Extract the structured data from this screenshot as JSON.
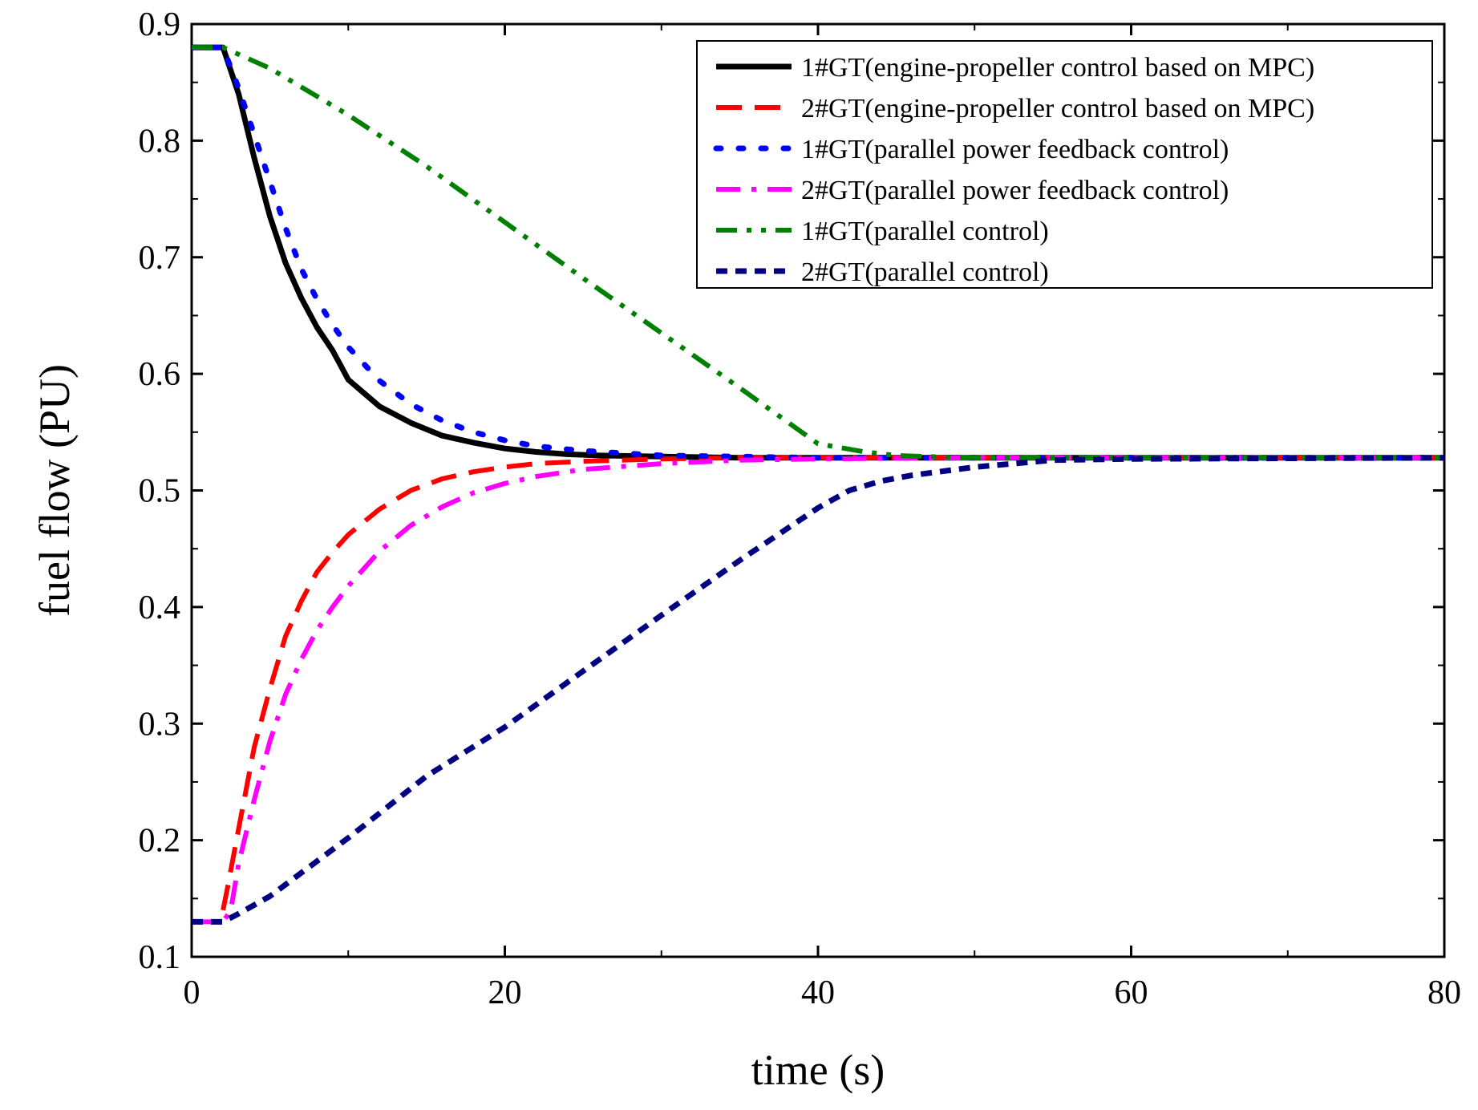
{
  "chart_data": {
    "type": "line",
    "title": "",
    "xlabel": "time (s)",
    "ylabel": "fuel flow (PU)",
    "xlim": [
      0,
      80
    ],
    "ylim": [
      0.1,
      0.9
    ],
    "xticks": [
      0,
      20,
      40,
      60,
      80
    ],
    "xtick_labels": [
      "0",
      "20",
      "40",
      "60",
      "80"
    ],
    "yticks": [
      0.1,
      0.2,
      0.3,
      0.4,
      0.5,
      0.6,
      0.7,
      0.8,
      0.9
    ],
    "ytick_labels": [
      "0.1",
      "0.2",
      "0.3",
      "0.4",
      "0.5",
      "0.6",
      "0.7",
      "0.8",
      "0.9"
    ],
    "grid": false,
    "legend_position": "top-right",
    "series": [
      {
        "name": "1#GT(engine-propeller control based on MPC)",
        "color": "#000000",
        "style": "solid",
        "x": [
          0,
          2,
          3,
          4,
          5,
          6,
          7,
          8,
          9,
          10,
          12,
          14,
          16,
          18,
          20,
          22,
          24,
          26,
          30,
          35,
          40,
          50,
          60,
          80
        ],
        "y": [
          0.88,
          0.88,
          0.84,
          0.785,
          0.735,
          0.695,
          0.665,
          0.64,
          0.62,
          0.595,
          0.572,
          0.558,
          0.547,
          0.541,
          0.536,
          0.533,
          0.531,
          0.53,
          0.529,
          0.528,
          0.528,
          0.528,
          0.528,
          0.528
        ]
      },
      {
        "name": "2#GT(engine-propeller control based on MPC)",
        "color": "#ff0000",
        "style": "dash",
        "x": [
          2,
          2.3,
          3,
          4,
          5,
          6,
          7,
          8,
          9,
          10,
          12,
          14,
          16,
          18,
          20,
          22,
          25,
          30,
          35,
          40,
          50,
          60,
          80
        ],
        "y": [
          0.14,
          0.16,
          0.21,
          0.28,
          0.33,
          0.375,
          0.405,
          0.43,
          0.447,
          0.462,
          0.484,
          0.5,
          0.51,
          0.516,
          0.52,
          0.523,
          0.525,
          0.527,
          0.528,
          0.528,
          0.528,
          0.528,
          0.528
        ]
      },
      {
        "name": "1#GT(parallel power feedback control)",
        "color": "#0000ff",
        "style": "dot",
        "x": [
          0,
          2,
          3,
          4,
          5,
          6,
          7,
          8,
          9,
          10,
          12,
          14,
          16,
          18,
          20,
          22,
          25,
          30,
          35,
          40,
          50,
          60,
          80
        ],
        "y": [
          0.88,
          0.88,
          0.845,
          0.805,
          0.765,
          0.725,
          0.69,
          0.664,
          0.642,
          0.623,
          0.594,
          0.574,
          0.56,
          0.55,
          0.543,
          0.538,
          0.534,
          0.53,
          0.529,
          0.528,
          0.528,
          0.528,
          0.528
        ]
      },
      {
        "name": "2#GT(parallel power feedback control)",
        "color": "#ff00ff",
        "style": "dashdot",
        "x": [
          0,
          2,
          2.5,
          3,
          4,
          5,
          6,
          7,
          8,
          9,
          10,
          12,
          14,
          16,
          18,
          20,
          22,
          25,
          30,
          35,
          40,
          50,
          60,
          80
        ],
        "y": [
          0.13,
          0.13,
          0.14,
          0.18,
          0.235,
          0.285,
          0.325,
          0.355,
          0.38,
          0.4,
          0.418,
          0.448,
          0.47,
          0.486,
          0.498,
          0.506,
          0.512,
          0.518,
          0.523,
          0.526,
          0.527,
          0.528,
          0.528,
          0.528
        ]
      },
      {
        "name": "1#GT(parallel control)",
        "color": "#008000",
        "style": "dashdotdot",
        "x": [
          0,
          1,
          2,
          5,
          10,
          15,
          20,
          25,
          30,
          35,
          40,
          43,
          45,
          47,
          50,
          60,
          80
        ],
        "y": [
          0.88,
          0.88,
          0.88,
          0.862,
          0.822,
          0.778,
          0.73,
          0.682,
          0.635,
          0.588,
          0.54,
          0.533,
          0.53,
          0.529,
          0.528,
          0.528,
          0.528
        ]
      },
      {
        "name": "2#GT(parallel control)",
        "color": "#000080",
        "style": "shortdash",
        "x": [
          0,
          2,
          3,
          5,
          10,
          15,
          20,
          25,
          30,
          35,
          40,
          42,
          44,
          46,
          50,
          55,
          60,
          80
        ],
        "y": [
          0.13,
          0.13,
          0.137,
          0.152,
          0.202,
          0.255,
          0.297,
          0.345,
          0.393,
          0.44,
          0.485,
          0.5,
          0.508,
          0.513,
          0.52,
          0.526,
          0.527,
          0.528
        ]
      }
    ]
  }
}
